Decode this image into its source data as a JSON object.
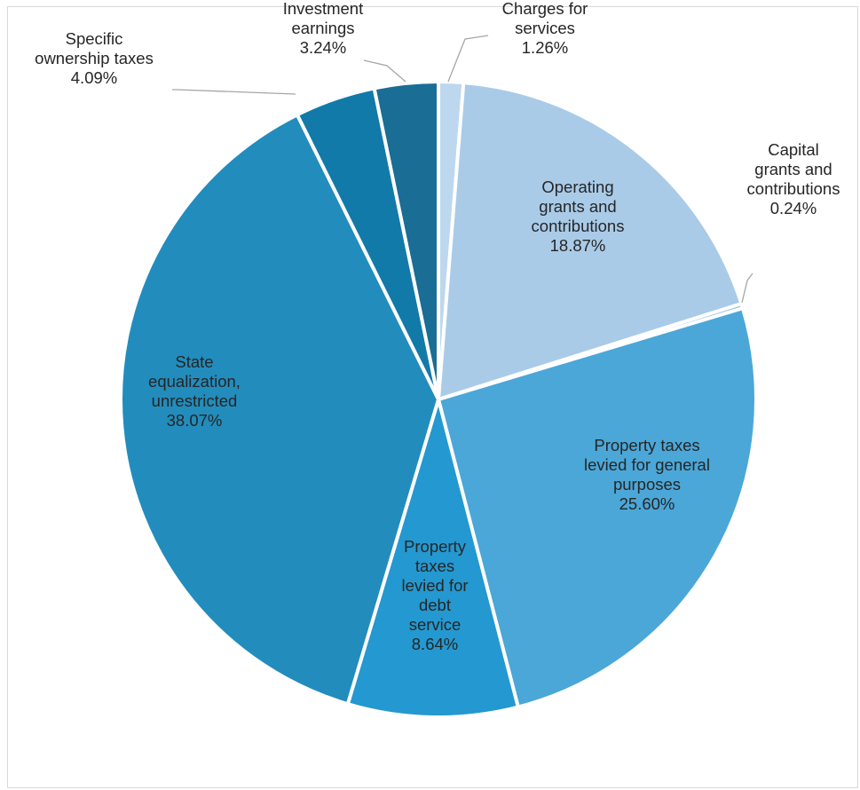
{
  "chart_data": {
    "type": "pie",
    "title": "",
    "start_angle_deg": 0,
    "direction": "clockwise",
    "label_format": "{name}\n{percent}",
    "slices": [
      {
        "name": "Charges for services",
        "label_lines": [
          "Charges for",
          "services"
        ],
        "value": 1.26,
        "label": "1.26%",
        "color": "#bdd7ee"
      },
      {
        "name": "Operating grants and contributions",
        "label_lines": [
          "Operating",
          "grants and",
          "contributions"
        ],
        "value": 18.87,
        "label": "18.87%",
        "color": "#a9cbe8"
      },
      {
        "name": "Capital grants and contributions",
        "label_lines": [
          "Capital",
          "grants and",
          "contributions"
        ],
        "value": 0.24,
        "label": "0.24%",
        "color": "#9dc3e6"
      },
      {
        "name": "Property taxes levied for general purposes",
        "label_lines": [
          "Property taxes",
          "levied for general",
          "purposes"
        ],
        "value": 25.6,
        "label": "25.60%",
        "color": "#4ba7d8"
      },
      {
        "name": "Property taxes levied for debt service",
        "label_lines": [
          "Property",
          "taxes",
          "levied for",
          "debt",
          "service"
        ],
        "value": 8.64,
        "label": "8.64%",
        "color": "#2498d0"
      },
      {
        "name": "State equalization, unrestricted",
        "label_lines": [
          "State",
          "equalization,",
          "unrestricted"
        ],
        "value": 38.07,
        "label": "38.07%",
        "color": "#228cbd"
      },
      {
        "name": "Specific ownership taxes",
        "label_lines": [
          "Specific",
          "ownership taxes"
        ],
        "value": 4.09,
        "label": "4.09%",
        "color": "#127aa9"
      },
      {
        "name": "Investment earnings",
        "label_lines": [
          "Investment",
          "earnings"
        ],
        "value": 3.24,
        "label": "3.24%",
        "color": "#1a6d94"
      }
    ]
  }
}
